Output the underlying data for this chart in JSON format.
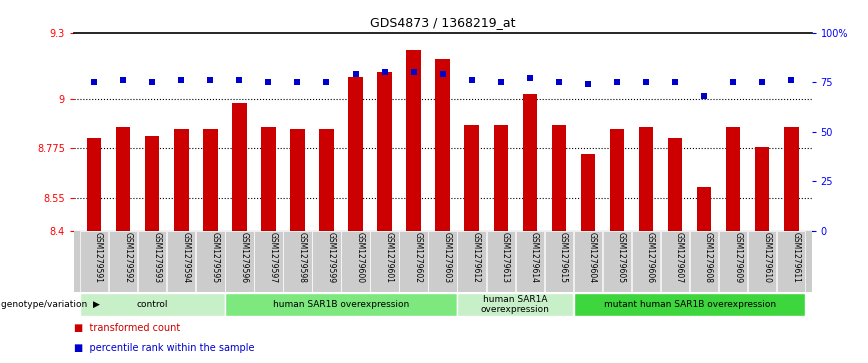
{
  "title": "GDS4873 / 1368219_at",
  "samples": [
    "GSM1279591",
    "GSM1279592",
    "GSM1279593",
    "GSM1279594",
    "GSM1279595",
    "GSM1279596",
    "GSM1279597",
    "GSM1279598",
    "GSM1279599",
    "GSM1279600",
    "GSM1279601",
    "GSM1279602",
    "GSM1279603",
    "GSM1279612",
    "GSM1279613",
    "GSM1279614",
    "GSM1279615",
    "GSM1279604",
    "GSM1279605",
    "GSM1279606",
    "GSM1279607",
    "GSM1279608",
    "GSM1279609",
    "GSM1279610",
    "GSM1279611"
  ],
  "red_bars": [
    8.82,
    8.87,
    8.83,
    8.86,
    8.86,
    8.98,
    8.87,
    8.86,
    8.86,
    9.1,
    9.12,
    9.22,
    9.18,
    8.88,
    8.88,
    9.02,
    8.88,
    8.75,
    8.86,
    8.87,
    8.82,
    8.6,
    8.87,
    8.78,
    8.87
  ],
  "blue_dots": [
    75,
    76,
    75,
    76,
    76,
    76,
    75,
    75,
    75,
    79,
    80,
    80,
    79,
    76,
    75,
    77,
    75,
    74,
    75,
    75,
    75,
    68,
    75,
    75,
    76
  ],
  "ylim_left": [
    8.4,
    9.3
  ],
  "ylim_right": [
    0,
    100
  ],
  "yticks_left": [
    8.4,
    8.55,
    8.775,
    9.0,
    9.3
  ],
  "yticks_right": [
    0,
    25,
    50,
    75,
    100
  ],
  "ytick_labels_left": [
    "8.4",
    "8.55",
    "8.775",
    "9",
    "9.3"
  ],
  "ytick_labels_right": [
    "0",
    "25",
    "50",
    "75",
    "100%"
  ],
  "hlines": [
    9.0,
    8.775,
    8.55
  ],
  "groups": [
    {
      "label": "control",
      "start": 0,
      "end": 4,
      "color": "#c8f0c8"
    },
    {
      "label": "human SAR1B overexpression",
      "start": 5,
      "end": 12,
      "color": "#7de87d"
    },
    {
      "label": "human SAR1A\noverexpression",
      "start": 13,
      "end": 16,
      "color": "#c8f0c8"
    },
    {
      "label": "mutant human SAR1B overexpression",
      "start": 17,
      "end": 24,
      "color": "#3dd63d"
    }
  ],
  "bar_color": "#cc0000",
  "dot_color": "#0000cc",
  "bar_width": 0.5,
  "legend_label_red": "transformed count",
  "legend_label_blue": "percentile rank within the sample",
  "genotype_label": "genotype/variation",
  "background_color": "#ffffff",
  "plot_bg_color": "#ffffff",
  "tick_label_gray_bg": "#cccccc"
}
